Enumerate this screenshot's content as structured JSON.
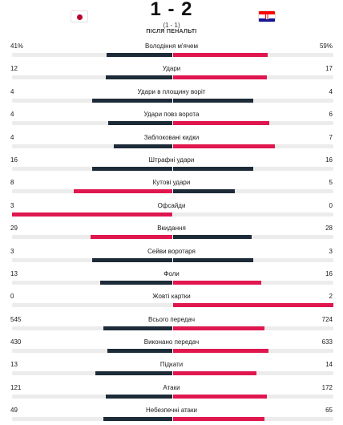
{
  "colors": {
    "dark": "#1d2b38",
    "red": "#e0174f",
    "track": "#ececec"
  },
  "header": {
    "home_flag": "japan-flag-icon",
    "away_flag": "croatia-flag-icon",
    "score": "1 - 2",
    "aggregate": "(1 - 1)",
    "status": "ПІСЛЯ ПЕНАЛЬТІ"
  },
  "stats": [
    {
      "label": "Володіння м'ячем",
      "home": "41%",
      "away": "59%",
      "home_value": 41,
      "away_value": 59,
      "home_color": "dark",
      "away_color": "red"
    },
    {
      "label": "Удари",
      "home": "12",
      "away": "17",
      "home_value": 12,
      "away_value": 17,
      "home_color": "dark",
      "away_color": "red"
    },
    {
      "label": "Удари в площину воріт",
      "home": "4",
      "away": "4",
      "home_value": 4,
      "away_value": 4,
      "home_color": "dark",
      "away_color": "dark"
    },
    {
      "label": "Удари повз ворота",
      "home": "4",
      "away": "6",
      "home_value": 4,
      "away_value": 6,
      "home_color": "dark",
      "away_color": "red"
    },
    {
      "label": "Заблоковані кидки",
      "home": "4",
      "away": "7",
      "home_value": 4,
      "away_value": 7,
      "home_color": "dark",
      "away_color": "red"
    },
    {
      "label": "Штрафні удари",
      "home": "16",
      "away": "16",
      "home_value": 16,
      "away_value": 16,
      "home_color": "dark",
      "away_color": "dark"
    },
    {
      "label": "Кутові удари",
      "home": "8",
      "away": "5",
      "home_value": 8,
      "away_value": 5,
      "home_color": "red",
      "away_color": "dark"
    },
    {
      "label": "Офсайди",
      "home": "3",
      "away": "0",
      "home_value": 3,
      "away_value": 0,
      "home_color": "red",
      "away_color": "dark"
    },
    {
      "label": "Вкидання",
      "home": "29",
      "away": "28",
      "home_value": 29,
      "away_value": 28,
      "home_color": "red",
      "away_color": "dark"
    },
    {
      "label": "Сейви воротаря",
      "home": "3",
      "away": "3",
      "home_value": 3,
      "away_value": 3,
      "home_color": "dark",
      "away_color": "dark"
    },
    {
      "label": "Фоли",
      "home": "13",
      "away": "16",
      "home_value": 13,
      "away_value": 16,
      "home_color": "dark",
      "away_color": "red"
    },
    {
      "label": "Жовті картки",
      "home": "0",
      "away": "2",
      "home_value": 0,
      "away_value": 2,
      "home_color": "dark",
      "away_color": "red"
    },
    {
      "label": "Всього передач",
      "home": "545",
      "away": "724",
      "home_value": 545,
      "away_value": 724,
      "home_color": "dark",
      "away_color": "red"
    },
    {
      "label": "Виконано передач",
      "home": "430",
      "away": "633",
      "home_value": 430,
      "away_value": 633,
      "home_color": "dark",
      "away_color": "red"
    },
    {
      "label": "Підкати",
      "home": "13",
      "away": "14",
      "home_value": 13,
      "away_value": 14,
      "home_color": "dark",
      "away_color": "red"
    },
    {
      "label": "Атаки",
      "home": "121",
      "away": "172",
      "home_value": 121,
      "away_value": 172,
      "home_color": "dark",
      "away_color": "red"
    },
    {
      "label": "Небезпечні атаки",
      "home": "49",
      "away": "65",
      "home_value": 49,
      "away_value": 65,
      "home_color": "dark",
      "away_color": "red"
    }
  ]
}
